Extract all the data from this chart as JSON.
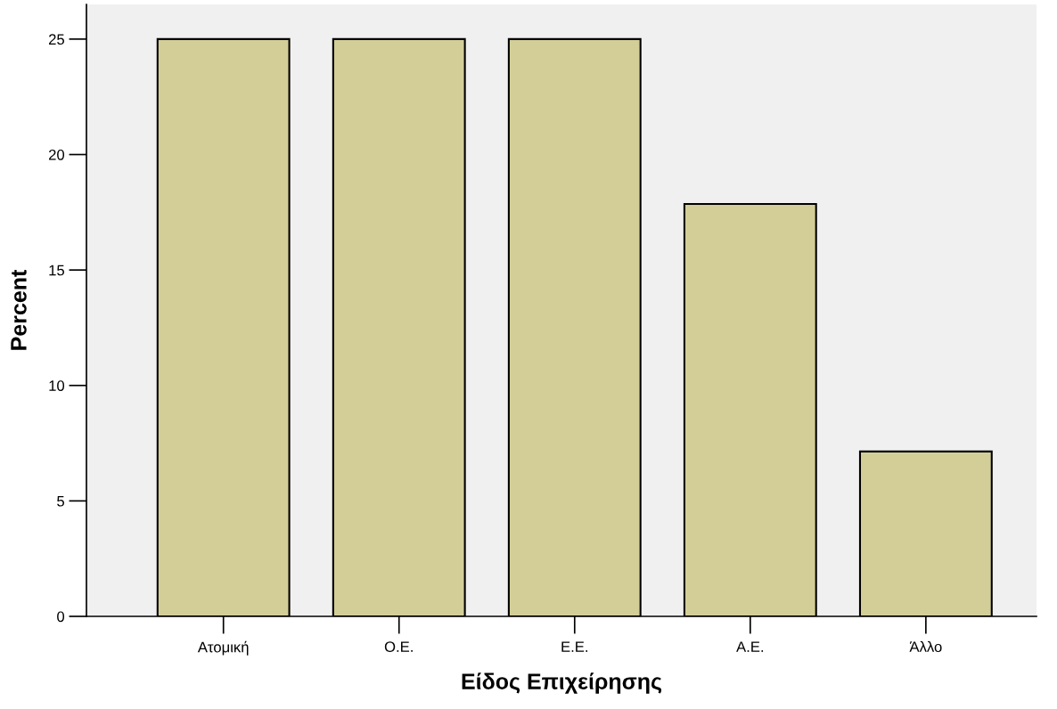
{
  "chart_data": {
    "type": "bar",
    "xlabel": "Είδος Επιχείρησης",
    "ylabel": "Percent",
    "categories": [
      "Ατομική",
      "Ο.Ε.",
      "Ε.Ε.",
      "Α.Ε.",
      "Άλλο"
    ],
    "values": [
      25,
      25,
      25,
      17.86,
      7.14
    ],
    "color": "#d3ce97",
    "ylim": [
      0,
      26.5
    ],
    "yticks": [
      0,
      5,
      10,
      15,
      20,
      25
    ],
    "grid": false,
    "legend": false
  }
}
